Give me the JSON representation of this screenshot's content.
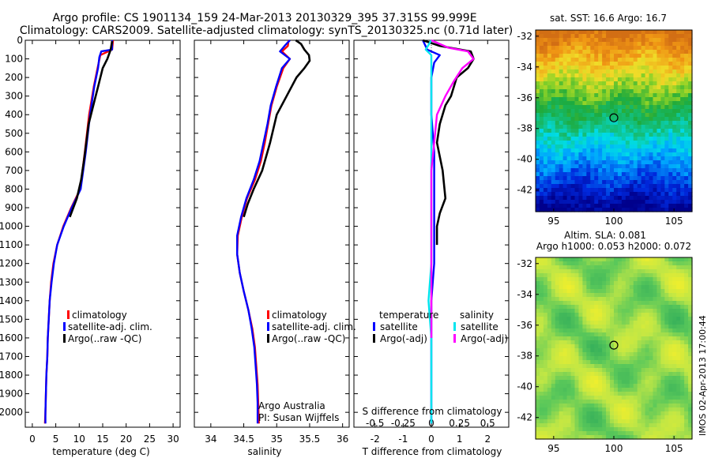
{
  "header": {
    "line1": "Argo profile: CS 1901134_159 24-Mar-2013 20130329_395 37.315S 99.999E",
    "line2": "Climatology: CARS2009. Satellite-adjusted climatology: synTS_20130325.nc (0.71d later)"
  },
  "colors": {
    "climatology": "#ff0000",
    "satellite": "#0000ff",
    "argo": "#000000",
    "sal_satellite": "#00e5ee",
    "sal_argo": "#ff00ff"
  },
  "chart_data": [
    {
      "id": "temperature",
      "type": "line",
      "xlabel": "temperature (deg C)",
      "ylabel": "",
      "xlim": [
        -1.5,
        31.5
      ],
      "ylim": [
        2080,
        0
      ],
      "xticks": [
        0,
        5,
        10,
        15,
        20,
        25,
        30
      ],
      "yticks": [
        0,
        100,
        200,
        300,
        400,
        500,
        600,
        700,
        800,
        900,
        1000,
        1100,
        1200,
        1300,
        1400,
        1500,
        1600,
        1700,
        1800,
        1900,
        2000
      ],
      "legend": [
        "climatology",
        "satellite-adj. clim.",
        "Argo(..raw -QC)"
      ],
      "legend_position": "lower-right",
      "series": [
        {
          "name": "climatology",
          "color": "#ff0000",
          "points": [
            [
              17.2,
              0
            ],
            [
              17.0,
              50
            ],
            [
              14.5,
              80
            ],
            [
              13.9,
              150
            ],
            [
              13.1,
              250
            ],
            [
              12.1,
              400
            ],
            [
              11.2,
              600
            ],
            [
              10.2,
              800
            ],
            [
              8.3,
              900
            ],
            [
              6.6,
              1000
            ],
            [
              5.3,
              1100
            ],
            [
              4.5,
              1200
            ],
            [
              4.0,
              1300
            ],
            [
              3.7,
              1400
            ],
            [
              3.5,
              1500
            ],
            [
              3.3,
              1600
            ],
            [
              3.2,
              1700
            ],
            [
              3.0,
              1800
            ],
            [
              2.9,
              1900
            ],
            [
              2.8,
              2000
            ],
            [
              2.7,
              2060
            ]
          ]
        },
        {
          "name": "satellite-adj. clim.",
          "color": "#0000ff",
          "points": [
            [
              17.0,
              0
            ],
            [
              17.0,
              50
            ],
            [
              14.7,
              60
            ],
            [
              14.3,
              90
            ],
            [
              14.0,
              150
            ],
            [
              13.2,
              250
            ],
            [
              12.3,
              400
            ],
            [
              11.4,
              600
            ],
            [
              10.3,
              800
            ],
            [
              8.4,
              900
            ],
            [
              6.7,
              1000
            ],
            [
              5.3,
              1100
            ],
            [
              4.6,
              1200
            ],
            [
              4.1,
              1300
            ],
            [
              3.7,
              1400
            ],
            [
              3.5,
              1500
            ],
            [
              3.3,
              1600
            ],
            [
              3.2,
              1700
            ],
            [
              3.0,
              1800
            ],
            [
              2.9,
              1900
            ],
            [
              2.8,
              2000
            ],
            [
              2.8,
              2060
            ]
          ]
        },
        {
          "name": "Argo(..raw -QC)",
          "color": "#000000",
          "points": [
            [
              17.0,
              5
            ],
            [
              16.7,
              50
            ],
            [
              16.0,
              100
            ],
            [
              15.0,
              150
            ],
            [
              14.0,
              250
            ],
            [
              13.0,
              350
            ],
            [
              12.0,
              450
            ],
            [
              11.5,
              550
            ],
            [
              11.0,
              650
            ],
            [
              10.4,
              750
            ],
            [
              9.5,
              850
            ],
            [
              8.0,
              950
            ]
          ]
        }
      ]
    },
    {
      "id": "salinity",
      "type": "line",
      "xlabel": "salinity",
      "ylabel": "",
      "xlim": [
        33.75,
        36.1
      ],
      "ylim": [
        2080,
        0
      ],
      "xticks": [
        34,
        34.5,
        35,
        35.5,
        36
      ],
      "legend": [
        "climatology",
        "satellite-adj. clim.",
        "Argo(..raw -QC)"
      ],
      "legend_position": "lower-right",
      "annotation": [
        "Argo Australia",
        "PI: Susan Wijffels"
      ],
      "series": [
        {
          "name": "climatology",
          "color": "#ff0000",
          "points": [
            [
              35.18,
              0
            ],
            [
              35.17,
              30
            ],
            [
              35.08,
              60
            ],
            [
              35.2,
              100
            ],
            [
              35.1,
              150
            ],
            [
              35.0,
              250
            ],
            [
              34.92,
              350
            ],
            [
              34.87,
              450
            ],
            [
              34.82,
              550
            ],
            [
              34.76,
              650
            ],
            [
              34.67,
              750
            ],
            [
              34.55,
              850
            ],
            [
              34.47,
              950
            ],
            [
              34.41,
              1050
            ],
            [
              34.4,
              1150
            ],
            [
              34.44,
              1250
            ],
            [
              34.5,
              1350
            ],
            [
              34.57,
              1450
            ],
            [
              34.63,
              1550
            ],
            [
              34.67,
              1650
            ],
            [
              34.69,
              1750
            ],
            [
              34.71,
              1850
            ],
            [
              34.72,
              1950
            ],
            [
              34.73,
              2060
            ]
          ]
        },
        {
          "name": "satellite-adj. clim.",
          "color": "#0000ff",
          "points": [
            [
              35.2,
              0
            ],
            [
              35.12,
              30
            ],
            [
              35.05,
              60
            ],
            [
              35.2,
              100
            ],
            [
              35.08,
              150
            ],
            [
              34.99,
              250
            ],
            [
              34.91,
              350
            ],
            [
              34.86,
              450
            ],
            [
              34.8,
              550
            ],
            [
              34.74,
              650
            ],
            [
              34.65,
              750
            ],
            [
              34.54,
              850
            ],
            [
              34.46,
              950
            ],
            [
              34.4,
              1050
            ],
            [
              34.4,
              1150
            ],
            [
              34.44,
              1250
            ],
            [
              34.5,
              1350
            ],
            [
              34.57,
              1450
            ],
            [
              34.62,
              1550
            ],
            [
              34.66,
              1650
            ],
            [
              34.68,
              1750
            ],
            [
              34.7,
              1850
            ],
            [
              34.71,
              1950
            ],
            [
              34.71,
              2060
            ]
          ]
        },
        {
          "name": "Argo(..raw -QC)",
          "color": "#000000",
          "points": [
            [
              35.29,
              0
            ],
            [
              35.37,
              20
            ],
            [
              35.42,
              50
            ],
            [
              35.49,
              80
            ],
            [
              35.5,
              110
            ],
            [
              35.42,
              150
            ],
            [
              35.3,
              200
            ],
            [
              35.15,
              300
            ],
            [
              35.0,
              400
            ],
            [
              34.9,
              550
            ],
            [
              34.78,
              700
            ],
            [
              34.65,
              800
            ],
            [
              34.56,
              880
            ],
            [
              34.5,
              950
            ]
          ]
        }
      ]
    },
    {
      "id": "difference",
      "type": "line",
      "xlabel": "T difference from climatology",
      "ylabel": "",
      "xlabel_top": "S difference from climatology",
      "xlim": [
        -2.75,
        2.75
      ],
      "ylim": [
        2080,
        0
      ],
      "xticks": [
        -2,
        -1,
        0,
        1,
        2
      ],
      "xticks_top": [
        -0.5,
        -0.25,
        0,
        0.25,
        0.5
      ],
      "legend_groups": [
        {
          "title": "temperature",
          "entries": [
            "satellite",
            "Argo(-adj)"
          ]
        },
        {
          "title": "salinity",
          "entries": [
            "satellite",
            "Argo(-adj)"
          ]
        }
      ],
      "legend_position": "lower-center",
      "series": [
        {
          "name": "temperature satellite",
          "color": "#0000ff",
          "points": [
            [
              -0.3,
              0
            ],
            [
              -0.15,
              50
            ],
            [
              0.3,
              80
            ],
            [
              0.1,
              120
            ],
            [
              0.0,
              200
            ],
            [
              0.0,
              400
            ],
            [
              0.1,
              600
            ],
            [
              0.1,
              800
            ],
            [
              0.1,
              1000
            ],
            [
              0.1,
              1200
            ],
            [
              0.0,
              1400
            ],
            [
              0.0,
              1600
            ],
            [
              0.0,
              1800
            ],
            [
              0.0,
              2000
            ],
            [
              0.0,
              2060
            ]
          ]
        },
        {
          "name": "temperature Argo(-adj)",
          "color": "#000000",
          "points": [
            [
              -0.3,
              0
            ],
            [
              0.3,
              30
            ],
            [
              1.4,
              60
            ],
            [
              1.5,
              100
            ],
            [
              1.3,
              150
            ],
            [
              0.9,
              200
            ],
            [
              0.7,
              300
            ],
            [
              0.5,
              350
            ],
            [
              0.3,
              450
            ],
            [
              0.2,
              550
            ],
            [
              0.4,
              700
            ],
            [
              0.5,
              850
            ],
            [
              0.3,
              930
            ],
            [
              0.2,
              1000
            ],
            [
              0.2,
              1100
            ]
          ]
        },
        {
          "name": "salinity satellite",
          "color": "#00e5ee",
          "points": [
            [
              0.0,
              0
            ],
            [
              -0.2,
              50
            ],
            [
              0.0,
              80
            ],
            [
              0.0,
              120
            ],
            [
              0.0,
              300
            ],
            [
              0.0,
              600
            ],
            [
              0.0,
              900
            ],
            [
              0.0,
              1200
            ],
            [
              -0.1,
              1400
            ],
            [
              0.0,
              1600
            ],
            [
              0.0,
              1800
            ],
            [
              0.0,
              2000
            ],
            [
              0.0,
              2060
            ]
          ]
        },
        {
          "name": "salinity Argo(-adj)",
          "color": "#ff00ff",
          "points": [
            [
              0.0,
              0
            ],
            [
              0.6,
              40
            ],
            [
              1.3,
              60
            ],
            [
              1.5,
              100
            ],
            [
              1.1,
              150
            ],
            [
              0.8,
              220
            ],
            [
              0.5,
              300
            ],
            [
              0.2,
              400
            ],
            [
              0.1,
              550
            ],
            [
              0.0,
              700
            ],
            [
              0.0,
              1000
            ],
            [
              0.0,
              1400
            ],
            [
              0.0,
              1600
            ]
          ]
        }
      ]
    },
    {
      "id": "sst_map",
      "type": "heatmap",
      "title": "sat. SST: 16.6  Argo: 16.7",
      "xticks": [
        95,
        100,
        105
      ],
      "yticks": [
        -32,
        -34,
        -36,
        -38,
        -40,
        -42
      ],
      "xlim": [
        93.5,
        106.5
      ],
      "ylim": [
        -43.4,
        -31.6
      ],
      "marker": {
        "lon": 100.0,
        "lat": -37.3
      }
    },
    {
      "id": "sla_map",
      "type": "heatmap",
      "title": [
        "Altim. SLA: 0.081",
        "Argo h1000: 0.053  h2000: 0.072"
      ],
      "xticks": [
        95,
        100,
        105
      ],
      "yticks": [
        -32,
        -34,
        -36,
        -38,
        -40,
        -42
      ],
      "xlim": [
        93.5,
        106.5
      ],
      "ylim": [
        -43.4,
        -31.6
      ],
      "marker": {
        "lon": 100.0,
        "lat": -37.3
      }
    }
  ],
  "credit": "IMOS 02-Apr-2013 17:00:44"
}
